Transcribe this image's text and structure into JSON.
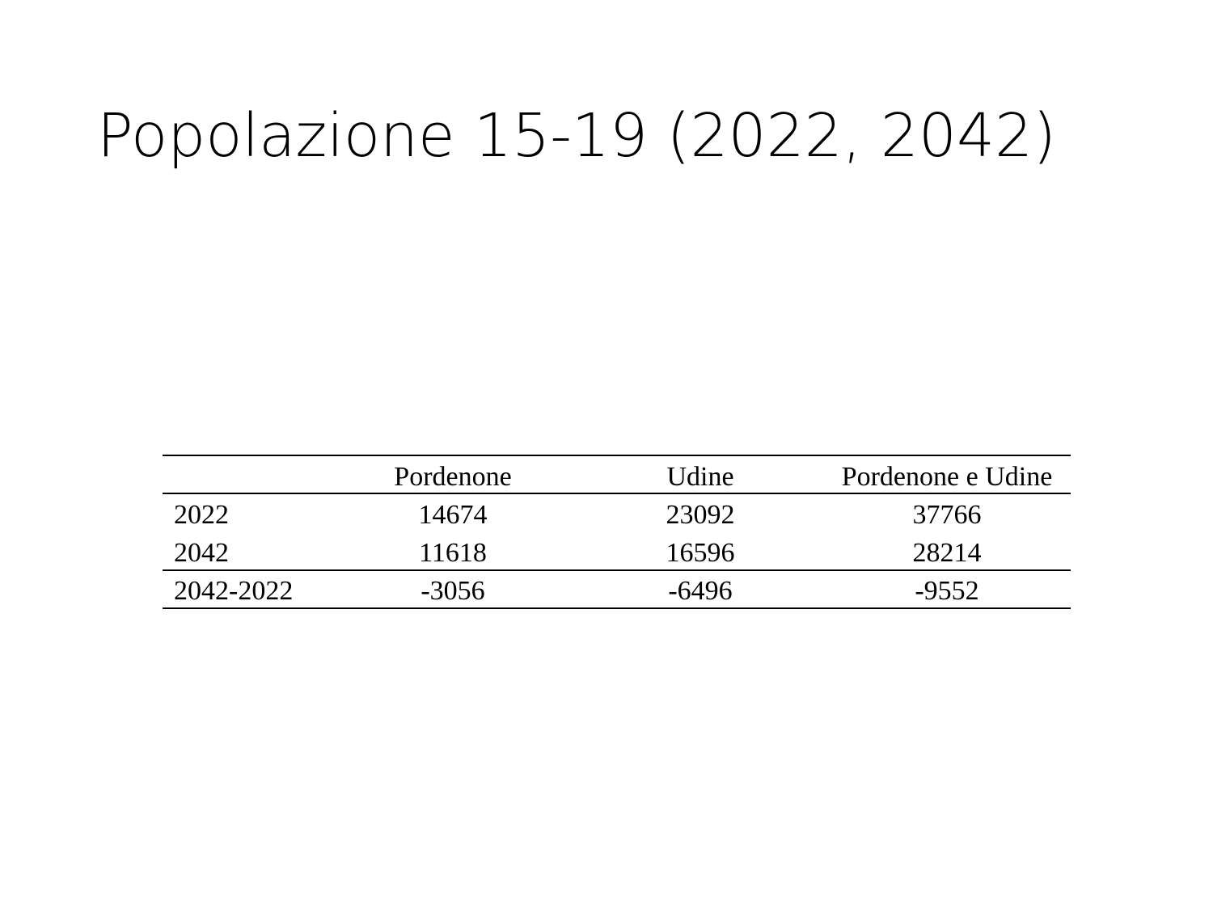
{
  "title": "Popolazione 15-19 (2022, 2042)",
  "table": {
    "columns": [
      "Pordenone",
      "Udine",
      "Pordenone e Udine"
    ],
    "rows": [
      {
        "label": "2022",
        "values": [
          14674,
          23092,
          37766
        ]
      },
      {
        "label": "2042",
        "values": [
          11618,
          16596,
          28214
        ]
      },
      {
        "label": "2042-2022",
        "values": [
          -3056,
          -6496,
          -9552
        ]
      }
    ]
  }
}
